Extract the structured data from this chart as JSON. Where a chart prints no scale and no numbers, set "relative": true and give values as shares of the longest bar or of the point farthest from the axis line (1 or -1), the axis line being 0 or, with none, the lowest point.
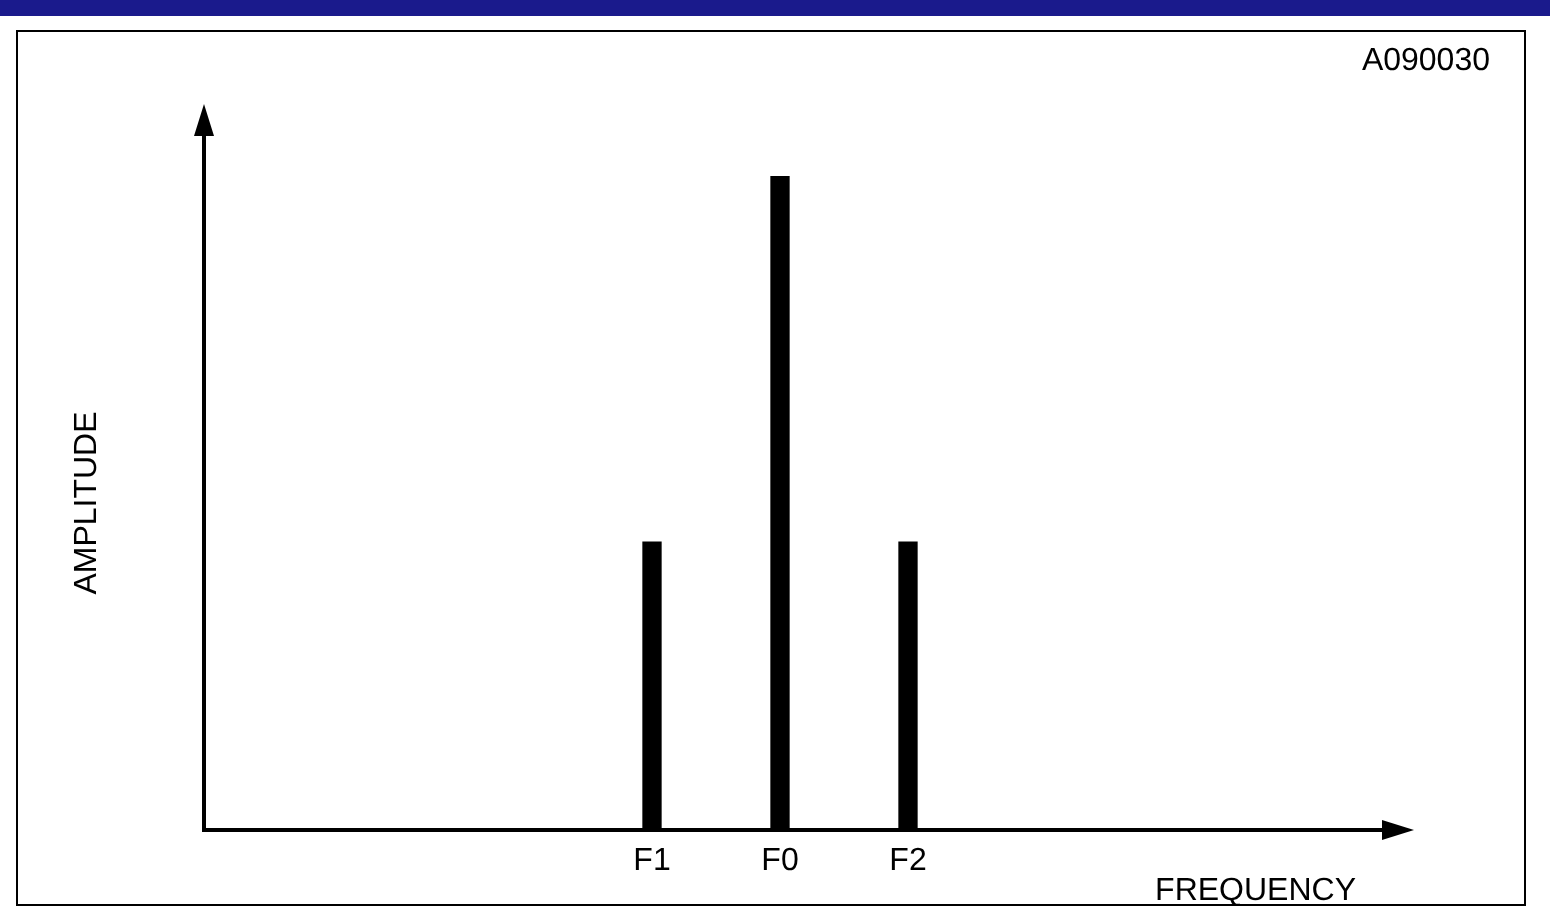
{
  "chart_data": {
    "type": "bar",
    "relative": true,
    "categories": [
      null,
      null,
      null,
      "F1",
      "F0",
      "F2",
      null,
      null,
      null
    ],
    "values": [
      null,
      null,
      null,
      0.44,
      1,
      0.44,
      null,
      null,
      null
    ],
    "color": "#000000",
    "xlabel": "FREQUENCY",
    "ylabel": "AMPLITUDE",
    "annotations": [
      "A090030"
    ],
    "grid": false,
    "legend": false
  }
}
